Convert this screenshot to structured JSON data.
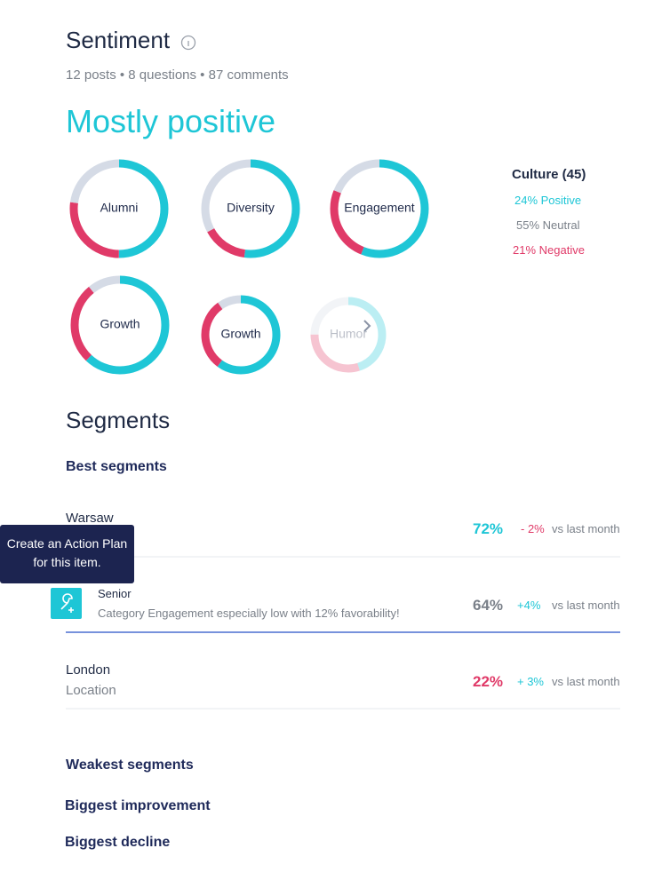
{
  "header": {
    "title": "Sentiment",
    "stats": "12 posts • 8 questions • 87 comments",
    "headline": "Mostly positive"
  },
  "donuts": [
    {
      "label": "Alumni",
      "positive": 50,
      "negative": 27,
      "neutral": 23
    },
    {
      "label": "Diversity",
      "positive": 52,
      "negative": 15,
      "neutral": 33
    },
    {
      "label": "Engagement",
      "positive": 56,
      "negative": 25,
      "neutral": 19
    },
    {
      "label": "Growth",
      "positive": 62,
      "negative": 27,
      "neutral": 11
    },
    {
      "label": "Growth",
      "positive": 60,
      "negative": 30,
      "neutral": 10
    },
    {
      "label": "Humor",
      "positive": 45,
      "negative": 30,
      "neutral": 25
    }
  ],
  "legend": {
    "title": "Culture (45)",
    "positive": "24% Positive",
    "neutral": "55% Neutral",
    "negative": "21% Negative"
  },
  "segments": {
    "title": "Segments",
    "best": "Best segments",
    "rows": [
      {
        "name": "Warsaw",
        "score": "72%",
        "change": "- 2%",
        "period": "vs last month"
      },
      {
        "name": "Senior",
        "note": "Category Engagement especially low with 12% favorability!",
        "score": "64%",
        "change": "+4%",
        "period": "vs last month"
      },
      {
        "name": "London",
        "sub": "Location",
        "score": "22%",
        "change": "+ 3%",
        "period": "vs last month"
      }
    ],
    "tooltip": "Create an Action Plan for this item.",
    "weakest": "Weakest segments",
    "improvement": "Biggest improvement",
    "decline": "Biggest decline"
  }
}
